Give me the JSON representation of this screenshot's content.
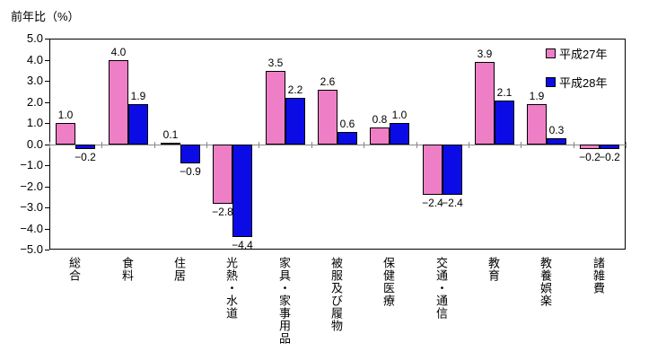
{
  "chart_data": {
    "type": "bar",
    "title": "前年比（%）",
    "ylabel": "前年比（%）",
    "xlabel": "",
    "ylim": [
      -5.0,
      5.0
    ],
    "ytick_step": 1.0,
    "yticks": [
      "5.0",
      "4.0",
      "3.0",
      "2.0",
      "1.0",
      "0.0",
      "−1.0",
      "−2.0",
      "−3.0",
      "−4.0",
      "−5.0"
    ],
    "grid": "off",
    "legend_position": "top-right-inside",
    "categories": [
      "総合",
      "食料",
      "住居",
      "光熱・水道",
      "家具・家事用品",
      "被服及び履物",
      "保健医療",
      "交通・通信",
      "教育",
      "教養娯楽",
      "諸雑費"
    ],
    "series": [
      {
        "name": "平成27年",
        "color": "#ee7fc6",
        "values": [
          1.0,
          4.0,
          0.1,
          -2.8,
          3.5,
          2.6,
          0.8,
          -2.4,
          3.9,
          1.9,
          -0.2
        ]
      },
      {
        "name": "平成28年",
        "color": "#0b0be6",
        "values": [
          -0.2,
          1.9,
          -0.9,
          -4.4,
          2.2,
          0.6,
          1.0,
          -2.4,
          2.1,
          0.3,
          -0.2
        ]
      }
    ],
    "colors": {
      "bar_border": "#000000",
      "zero_axis": "#888888",
      "plot_border": "#000000",
      "background": "#ffffff",
      "text": "#000000"
    }
  }
}
